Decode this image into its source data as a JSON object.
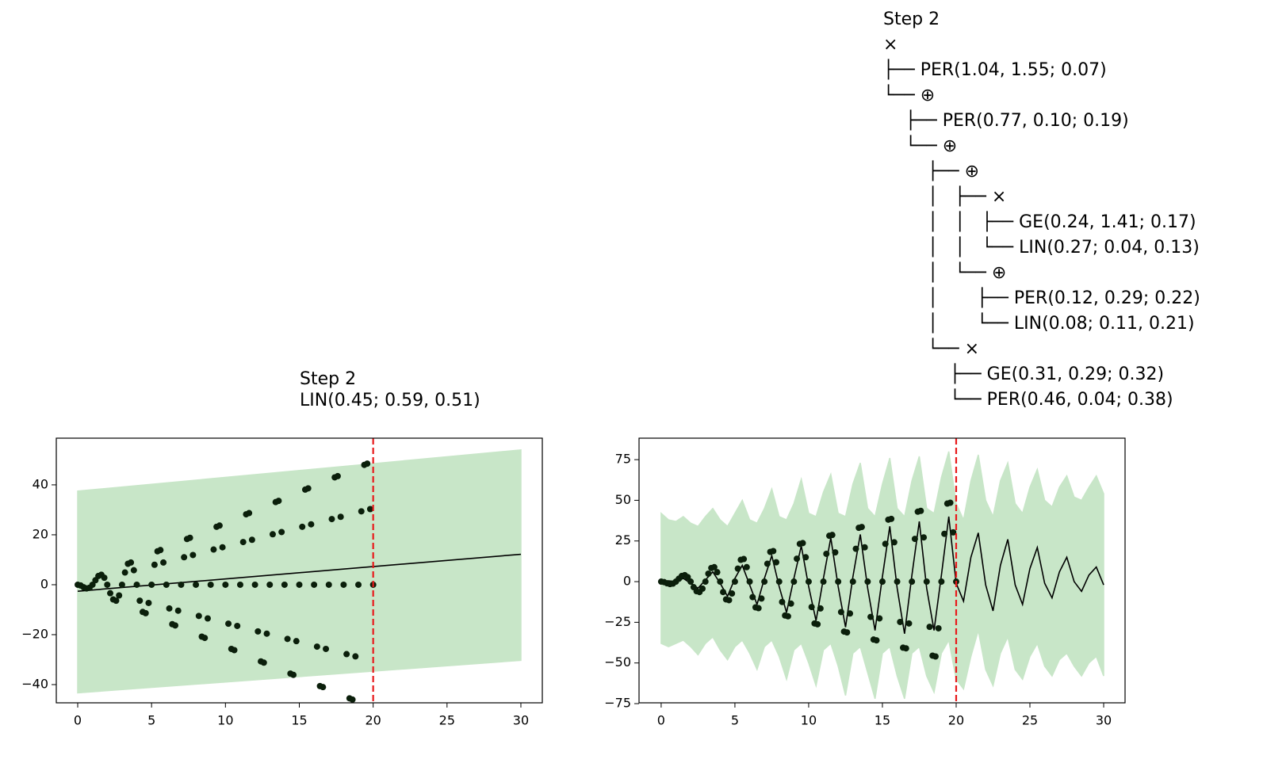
{
  "chart_data": [
    {
      "type": "scatter",
      "title_lines": [
        "Step 2",
        "LIN(0.45; 0.59, 0.51)"
      ],
      "x": [
        0,
        0.2,
        0.4,
        0.6,
        0.8,
        1,
        1.2,
        1.4,
        1.6,
        1.8,
        2,
        2.2,
        2.4,
        2.6,
        2.8,
        3,
        3.2,
        3.4,
        3.6,
        3.8,
        4,
        4.2,
        4.4,
        4.6,
        4.8,
        5,
        5.2,
        5.4,
        5.6,
        5.8,
        6,
        6.2,
        6.4,
        6.6,
        6.8,
        7,
        7.2,
        7.4,
        7.6,
        7.8,
        8,
        8.2,
        8.4,
        8.6,
        8.8,
        9,
        9.2,
        9.4,
        9.6,
        9.8,
        10,
        10.2,
        10.4,
        10.6,
        10.8,
        11,
        11.2,
        11.4,
        11.6,
        11.8,
        12,
        12.2,
        12.4,
        12.6,
        12.8,
        13,
        13.2,
        13.4,
        13.6,
        13.8,
        14,
        14.2,
        14.4,
        14.6,
        14.8,
        15,
        15.2,
        15.4,
        15.6,
        15.8,
        16,
        16.2,
        16.4,
        16.6,
        16.8,
        17,
        17.2,
        17.4,
        17.6,
        17.8,
        18,
        18.2,
        18.4,
        18.6,
        18.8,
        19,
        19.2,
        19.4,
        19.6,
        19.8,
        20
      ],
      "values": [
        0,
        -0.3,
        -1,
        -1.5,
        -1.2,
        0,
        1.8,
        3.5,
        4,
        2.8,
        0,
        -3.4,
        -5.9,
        -6.4,
        -4.3,
        0,
        4.9,
        8.4,
        8.9,
        5.8,
        0,
        -6.4,
        -10.9,
        -11.4,
        -7.3,
        0,
        8,
        13.4,
        13.9,
        8.9,
        0,
        -9.5,
        -15.8,
        -16.3,
        -10.4,
        0,
        11,
        18.3,
        18.8,
        11.9,
        0,
        -12.5,
        -20.8,
        -21.3,
        -13.5,
        0,
        14.1,
        23.2,
        23.7,
        15,
        0,
        -15.6,
        -25.7,
        -26.2,
        -16.5,
        0,
        17.1,
        28.2,
        28.7,
        18,
        0,
        -18.7,
        -30.7,
        -31.2,
        -19.6,
        0,
        20.2,
        33.1,
        33.6,
        21.1,
        0,
        -21.7,
        -35.6,
        -36.1,
        -22.6,
        0,
        23.2,
        38.1,
        38.6,
        24.2,
        0,
        -24.8,
        -40.6,
        -41,
        -25.7,
        0,
        26.3,
        43,
        43.5,
        27.2,
        0,
        -27.8,
        -45.5,
        -46,
        -28.7,
        0,
        29.4,
        48,
        48.5,
        30.3,
        0
      ],
      "color": "#0b1f0b",
      "mean": {
        "x": [
          0,
          30
        ],
        "values": [
          -2.6,
          12.2
        ],
        "color": "#000000"
      },
      "band": {
        "x": [
          0,
          30
        ],
        "upper": [
          37.5,
          54
        ],
        "lower": [
          -43.3,
          -30.3
        ],
        "color": "#c8e6c8"
      },
      "vline": {
        "x": 20,
        "color": "#e8191b"
      },
      "xlim": [
        -1.45,
        31.45
      ],
      "ylim": [
        -47.3,
        58.7
      ],
      "xticks": [
        0,
        5,
        10,
        15,
        20,
        25,
        30
      ],
      "yticks": [
        {
          "value": -40,
          "label": "−40"
        },
        {
          "value": -20,
          "label": "−20"
        },
        0,
        20,
        40
      ]
    },
    {
      "type": "scatter",
      "title_lines": [
        "Step 2",
        "×",
        "├── PER(1.04, 1.55; 0.07)",
        "└── ⊕",
        "    ├── PER(0.77, 0.10; 0.19)",
        "    └── ⊕",
        "        ├── ⊕",
        "        │   ├── ×",
        "        │   │   ├── GE(0.24, 1.41; 0.17)",
        "        │   │   └── LIN(0.27; 0.04, 0.13)",
        "        │   └── ⊕",
        "        │       ├── PER(0.12, 0.29; 0.22)",
        "        │       └── LIN(0.08; 0.11, 0.21)",
        "        └── ×",
        "            ├── GE(0.31, 0.29; 0.32)",
        "            └── PER(0.46, 0.04; 0.38)"
      ],
      "x": [
        0,
        0.2,
        0.4,
        0.6,
        0.8,
        1,
        1.2,
        1.4,
        1.6,
        1.8,
        2,
        2.2,
        2.4,
        2.6,
        2.8,
        3,
        3.2,
        3.4,
        3.6,
        3.8,
        4,
        4.2,
        4.4,
        4.6,
        4.8,
        5,
        5.2,
        5.4,
        5.6,
        5.8,
        6,
        6.2,
        6.4,
        6.6,
        6.8,
        7,
        7.2,
        7.4,
        7.6,
        7.8,
        8,
        8.2,
        8.4,
        8.6,
        8.8,
        9,
        9.2,
        9.4,
        9.6,
        9.8,
        10,
        10.2,
        10.4,
        10.6,
        10.8,
        11,
        11.2,
        11.4,
        11.6,
        11.8,
        12,
        12.2,
        12.4,
        12.6,
        12.8,
        13,
        13.2,
        13.4,
        13.6,
        13.8,
        14,
        14.2,
        14.4,
        14.6,
        14.8,
        15,
        15.2,
        15.4,
        15.6,
        15.8,
        16,
        16.2,
        16.4,
        16.6,
        16.8,
        17,
        17.2,
        17.4,
        17.6,
        17.8,
        18,
        18.2,
        18.4,
        18.6,
        18.8,
        19,
        19.2,
        19.4,
        19.6,
        19.8,
        20
      ],
      "values": [
        0,
        -0.3,
        -1,
        -1.5,
        -1.2,
        0,
        1.8,
        3.5,
        4,
        2.8,
        0,
        -3.4,
        -5.9,
        -6.4,
        -4.3,
        0,
        4.9,
        8.4,
        8.9,
        5.8,
        0,
        -6.4,
        -10.9,
        -11.4,
        -7.3,
        0,
        8,
        13.4,
        13.9,
        8.9,
        0,
        -9.5,
        -15.8,
        -16.3,
        -10.4,
        0,
        11,
        18.3,
        18.8,
        11.9,
        0,
        -12.5,
        -20.8,
        -21.3,
        -13.5,
        0,
        14.1,
        23.2,
        23.7,
        15,
        0,
        -15.6,
        -25.7,
        -26.2,
        -16.5,
        0,
        17.1,
        28.2,
        28.7,
        18,
        0,
        -18.7,
        -30.7,
        -31.2,
        -19.6,
        0,
        20.2,
        33.1,
        33.6,
        21.1,
        0,
        -21.7,
        -35.6,
        -36.1,
        -22.6,
        0,
        23.2,
        38.1,
        38.6,
        24.2,
        0,
        -24.8,
        -40.6,
        -41,
        -25.7,
        0,
        26.3,
        43,
        43.5,
        27.2,
        0,
        -27.8,
        -45.5,
        -46,
        -28.7,
        0,
        29.4,
        48,
        48.5,
        30.3,
        0
      ],
      "color": "#0b1f0b",
      "mean": {
        "x": [
          0,
          0.5,
          1,
          1.5,
          2,
          2.5,
          3,
          3.5,
          4,
          4.5,
          5,
          5.5,
          6,
          6.5,
          7,
          7.5,
          8,
          8.5,
          9,
          9.5,
          10,
          10.5,
          11,
          11.5,
          12,
          12.5,
          13,
          13.5,
          14,
          14.5,
          15,
          15.5,
          16,
          16.5,
          17,
          17.5,
          18,
          18.5,
          19,
          19.5,
          20,
          20.5,
          21,
          21.5,
          22,
          22.5,
          23,
          23.5,
          24,
          24.5,
          25,
          25.5,
          26,
          26.5,
          27,
          27.5,
          28,
          28.5,
          29,
          29.5,
          30
        ],
        "values": [
          0,
          0.5,
          0,
          2,
          -1,
          -4,
          1,
          6,
          -1,
          -9,
          2,
          10,
          -2,
          -14,
          2,
          16,
          -3,
          -19,
          2,
          22,
          -3,
          -24,
          2,
          27,
          -3,
          -28,
          3,
          29,
          -4,
          -30,
          3,
          34,
          -4,
          -32,
          4,
          37,
          -4,
          -30,
          4,
          40,
          -1,
          -12,
          15,
          30,
          -2,
          -18,
          10,
          26,
          -2,
          -14,
          8,
          21,
          -1,
          -10,
          6,
          15,
          0,
          -6,
          4,
          9,
          -2
        ],
        "color": "#000000"
      },
      "band": {
        "x": [
          0,
          0.5,
          1,
          1.5,
          2,
          2.5,
          3,
          3.5,
          4,
          4.5,
          5,
          5.5,
          6,
          6.5,
          7,
          7.5,
          8,
          8.5,
          9,
          9.5,
          10,
          10.5,
          11,
          11.5,
          12,
          12.5,
          13,
          13.5,
          14,
          14.5,
          15,
          15.5,
          16,
          16.5,
          17,
          17.5,
          18,
          18.5,
          19,
          19.5,
          20,
          20.5,
          21,
          21.5,
          22,
          22.5,
          23,
          23.5,
          24,
          24.5,
          25,
          25.5,
          26,
          26.5,
          27,
          27.5,
          28,
          28.5,
          29,
          29.5,
          30
        ],
        "upper": [
          42,
          38,
          37,
          40,
          36,
          34,
          40,
          45,
          38,
          34,
          42,
          50,
          38,
          36,
          45,
          57,
          40,
          38,
          48,
          63,
          42,
          40,
          55,
          66,
          42,
          40,
          60,
          73,
          45,
          40,
          60,
          76,
          45,
          40,
          62,
          77,
          45,
          42,
          64,
          80,
          48,
          38,
          62,
          78,
          50,
          40,
          62,
          73,
          48,
          42,
          58,
          69,
          50,
          46,
          58,
          65,
          52,
          50,
          58,
          65,
          54
        ],
        "lower": [
          -38,
          -40,
          -38,
          -36,
          -40,
          -45,
          -38,
          -34,
          -42,
          -48,
          -40,
          -36,
          -44,
          -54,
          -40,
          -36,
          -46,
          -60,
          -42,
          -38,
          -50,
          -64,
          -42,
          -38,
          -52,
          -70,
          -44,
          -40,
          -56,
          -72,
          -44,
          -40,
          -58,
          -72,
          -44,
          -40,
          -58,
          -68,
          -44,
          -36,
          -60,
          -66,
          -46,
          -30,
          -54,
          -64,
          -44,
          -34,
          -54,
          -60,
          -46,
          -38,
          -52,
          -58,
          -48,
          -44,
          -52,
          -58,
          -50,
          -46,
          -58
        ],
        "color": "#c8e6c8"
      },
      "vline": {
        "x": 20,
        "color": "#e8191b"
      },
      "xlim": [
        -1.5,
        31.45
      ],
      "ylim": [
        -74.5,
        88.2
      ],
      "xticks": [
        0,
        5,
        10,
        15,
        20,
        25,
        30
      ],
      "yticks": [
        {
          "value": -75,
          "label": "−75"
        },
        {
          "value": -50,
          "label": "−50"
        },
        {
          "value": -25,
          "label": "−25"
        },
        0,
        25,
        50,
        75
      ]
    }
  ]
}
